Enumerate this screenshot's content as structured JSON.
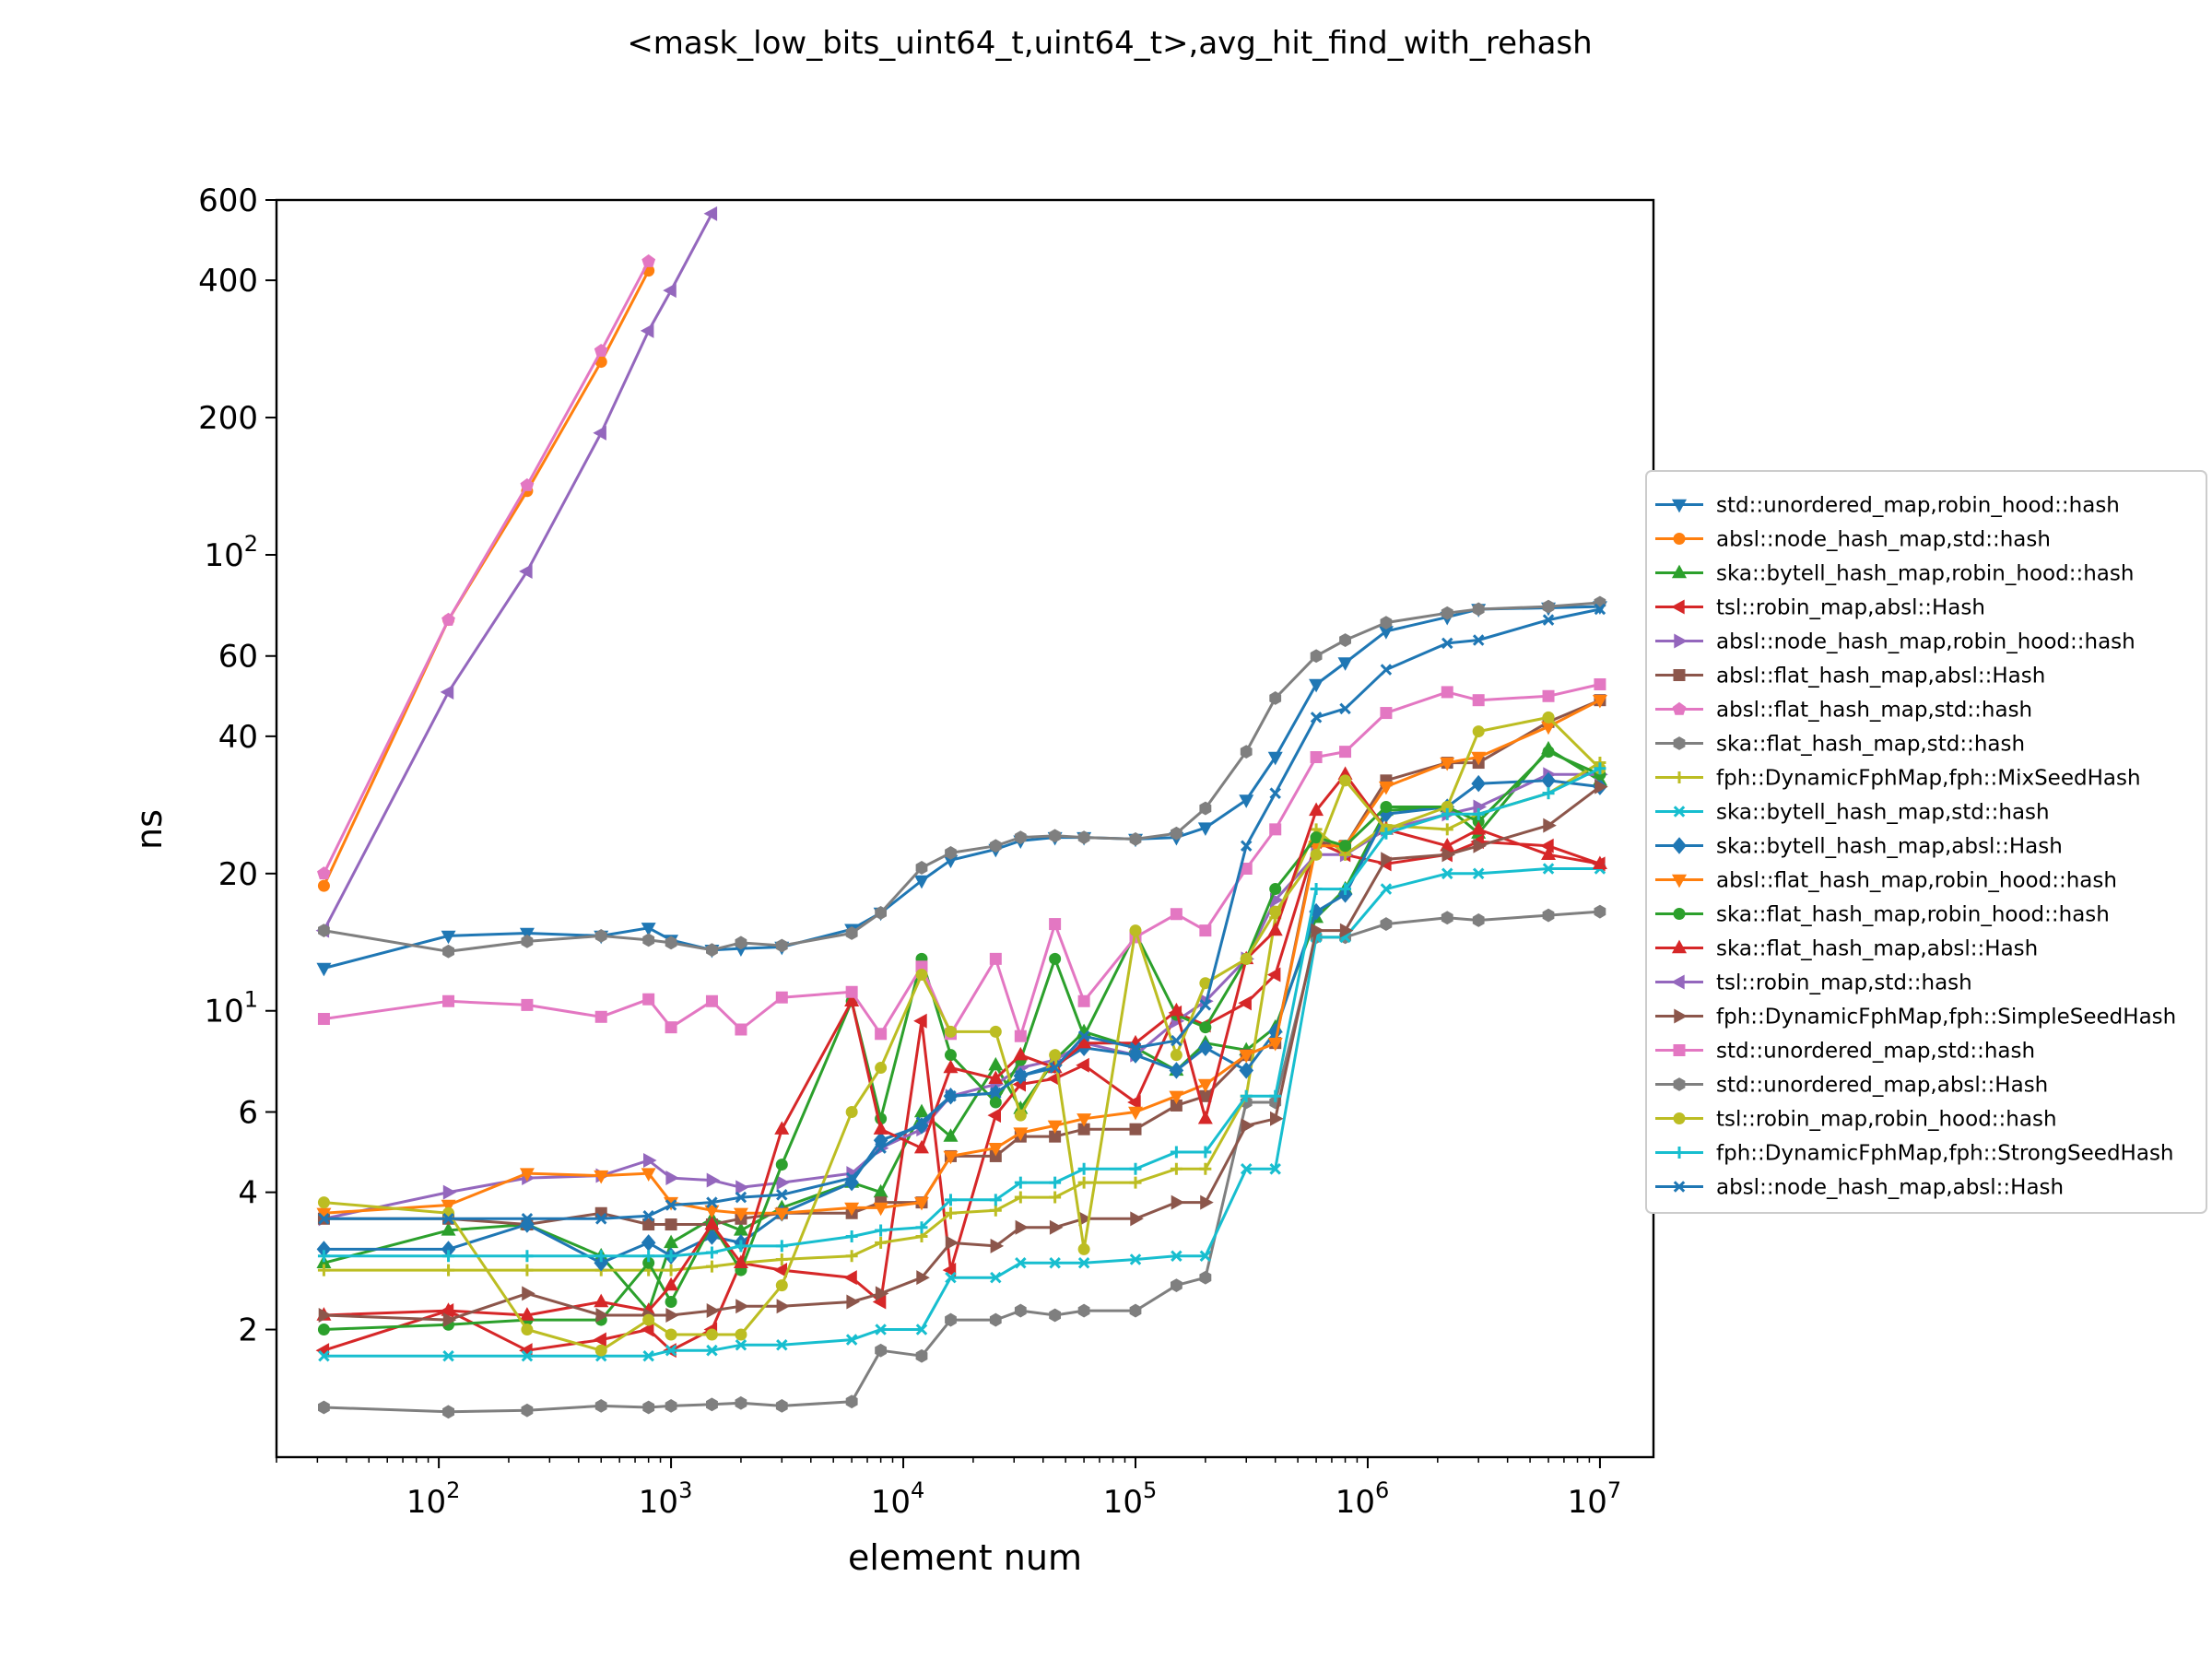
{
  "chart_data": {
    "type": "line",
    "title": "<mask_low_bits_uint64_t,uint64_t>,avg_hit_find_with_rehash",
    "xlabel": "element num",
    "ylabel": "ns",
    "xscale": "log",
    "yscale": "log",
    "xlim": [
      20,
      17000000
    ],
    "ylim": [
      1.05,
      600
    ],
    "grid": false,
    "legend_position": "right",
    "x_ticks": [
      {
        "value": 100,
        "base": "10",
        "exp": "2"
      },
      {
        "value": 1000,
        "base": "10",
        "exp": "3"
      },
      {
        "value": 10000,
        "base": "10",
        "exp": "4"
      },
      {
        "value": 100000,
        "base": "10",
        "exp": "5"
      },
      {
        "value": 1000000,
        "base": "10",
        "exp": "6"
      },
      {
        "value": 10000000,
        "base": "10",
        "exp": "7"
      }
    ],
    "y_ticks": [
      {
        "value": 2,
        "label": "2"
      },
      {
        "value": 4,
        "label": "4"
      },
      {
        "value": 6,
        "label": "6"
      },
      {
        "value": 10,
        "base": "10",
        "exp": "1"
      },
      {
        "value": 20,
        "label": "20"
      },
      {
        "value": 40,
        "label": "40"
      },
      {
        "value": 60,
        "label": "60"
      },
      {
        "value": 100,
        "base": "10",
        "exp": "2"
      },
      {
        "value": 200,
        "label": "200"
      },
      {
        "value": 400,
        "label": "400"
      },
      {
        "value": 600,
        "label": "600"
      }
    ],
    "x": [
      32,
      110,
      240,
      500,
      800,
      1000,
      1500,
      2000,
      3000,
      6000,
      8000,
      12000,
      16000,
      25000,
      32000,
      45000,
      60000,
      100000,
      150000,
      200000,
      300000,
      400000,
      600000,
      800000,
      1200000,
      2200000,
      3000000,
      6000000,
      10000000
    ],
    "series": [
      {
        "name": "std::unordered_map,robin_hood::hash",
        "color": "#1f77b4",
        "marker": "tri_down",
        "values": [
          12.4,
          14.6,
          14.8,
          14.6,
          15.2,
          14.3,
          13.6,
          13.7,
          13.8,
          15.1,
          16.4,
          19.3,
          21.4,
          22.6,
          23.6,
          24.0,
          24.0,
          23.8,
          24.0,
          25.2,
          29.0,
          36.0,
          52.0,
          58.0,
          68.0,
          73.0,
          76.0,
          76.5,
          77.0
        ]
      },
      {
        "name": "absl::node_hash_map,std::hash",
        "color": "#ff7f0e",
        "marker": "circle",
        "values": [
          18.8,
          72.0,
          138.0,
          265.0,
          420.0,
          null,
          null,
          null,
          null,
          null,
          null,
          null,
          null,
          null,
          null,
          null,
          null,
          null,
          null,
          null,
          null,
          null,
          null,
          null,
          null,
          null,
          null,
          null,
          null
        ]
      },
      {
        "name": "ska::bytell_hash_map,robin_hood::hash",
        "color": "#2ca02c",
        "marker": "tri_up",
        "values": [
          2.8,
          3.3,
          3.4,
          2.9,
          2.2,
          3.1,
          3.5,
          3.3,
          3.7,
          4.2,
          4.0,
          6.0,
          5.3,
          7.6,
          6.1,
          7.8,
          9.0,
          8.3,
          7.4,
          8.5,
          8.2,
          9.2,
          16.0,
          18.5,
          27.5,
          28.0,
          24.5,
          37.5,
          32.0
        ]
      },
      {
        "name": "tsl::robin_map,absl::Hash",
        "color": "#d62728",
        "marker": "tri_left",
        "values": [
          1.8,
          2.2,
          1.8,
          1.9,
          2.0,
          1.8,
          2.0,
          2.8,
          2.7,
          2.6,
          2.3,
          9.5,
          2.7,
          5.9,
          6.9,
          7.1,
          7.6,
          6.3,
          9.9,
          9.3,
          10.4,
          12.0,
          23.5,
          22.0,
          21.0,
          22.0,
          23.5,
          23.0,
          21.0
        ]
      },
      {
        "name": "absl::node_hash_map,robin_hood::hash",
        "color": "#9467bd",
        "marker": "tri_right",
        "values": [
          3.5,
          4.0,
          4.3,
          4.35,
          4.7,
          4.3,
          4.25,
          4.1,
          4.2,
          4.4,
          5.0,
          5.5,
          6.5,
          6.9,
          7.5,
          7.8,
          8.5,
          8.0,
          9.5,
          10.5,
          13.0,
          17.5,
          22.0,
          22.0,
          25.0,
          27.0,
          28.0,
          33.0,
          33.0
        ]
      },
      {
        "name": "absl::flat_hash_map,absl::Hash",
        "color": "#8c564b",
        "marker": "square",
        "values": [
          3.5,
          3.5,
          3.4,
          3.6,
          3.4,
          3.4,
          3.4,
          3.5,
          3.6,
          3.6,
          3.8,
          3.8,
          4.8,
          4.8,
          5.3,
          5.3,
          5.5,
          5.5,
          6.2,
          6.5,
          8.0,
          8.5,
          23.5,
          23.0,
          32.0,
          35.0,
          35.0,
          43.0,
          48.0
        ]
      },
      {
        "name": "absl::flat_hash_map,std::hash",
        "color": "#e377c2",
        "marker": "pentagon",
        "values": [
          20.0,
          72.0,
          142.0,
          280.0,
          440.0,
          null,
          null,
          null,
          null,
          null,
          null,
          null,
          null,
          null,
          null,
          null,
          null,
          null,
          null,
          null,
          null,
          null,
          null,
          null,
          null,
          null,
          null,
          null,
          null
        ]
      },
      {
        "name": "ska::flat_hash_map,std::hash",
        "color": "#7f7f7f",
        "marker": "hexagon",
        "values": [
          1.35,
          1.32,
          1.33,
          1.36,
          1.35,
          1.36,
          1.37,
          1.38,
          1.36,
          1.39,
          1.8,
          1.75,
          2.1,
          2.1,
          2.2,
          2.15,
          2.2,
          2.2,
          2.5,
          2.6,
          6.3,
          6.3,
          14.5,
          14.5,
          15.5,
          16.0,
          15.8,
          16.2,
          16.5
        ]
      },
      {
        "name": "fph::DynamicFphMap,fph::MixSeedHash",
        "color": "#bcbd22",
        "marker": "plus",
        "values": [
          2.7,
          2.7,
          2.7,
          2.7,
          2.7,
          2.7,
          2.75,
          2.8,
          2.85,
          2.9,
          3.1,
          3.2,
          3.6,
          3.65,
          3.9,
          3.9,
          4.2,
          4.2,
          4.5,
          4.5,
          6.5,
          16.0,
          25.0,
          22.0,
          25.5,
          25.0,
          27.0,
          30.0,
          35.0
        ]
      },
      {
        "name": "ska::bytell_hash_map,std::hash",
        "color": "#17becf",
        "marker": "x",
        "values": [
          1.75,
          1.75,
          1.75,
          1.75,
          1.75,
          1.8,
          1.8,
          1.85,
          1.85,
          1.9,
          2.0,
          2.0,
          2.6,
          2.6,
          2.8,
          2.8,
          2.8,
          2.85,
          2.9,
          2.9,
          4.5,
          4.5,
          14.5,
          14.5,
          18.5,
          20.0,
          20.0,
          20.5,
          20.5
        ]
      },
      {
        "name": "ska::bytell_hash_map,absl::Hash",
        "color": "#1f77b4",
        "marker": "diamond",
        "values": [
          3.0,
          3.0,
          3.4,
          2.8,
          3.1,
          2.9,
          3.2,
          3.1,
          3.6,
          4.2,
          5.2,
          5.6,
          6.5,
          6.6,
          7.2,
          7.6,
          8.3,
          8.0,
          7.4,
          8.3,
          7.4,
          9.0,
          16.5,
          18.0,
          27.0,
          28.0,
          31.5,
          32.0,
          31.0
        ]
      },
      {
        "name": "absl::flat_hash_map,robin_hood::hash",
        "color": "#ff7f0e",
        "marker": "tri_down",
        "values": [
          3.6,
          3.75,
          4.4,
          4.35,
          4.4,
          3.8,
          3.65,
          3.6,
          3.6,
          3.7,
          3.7,
          3.8,
          4.8,
          5.0,
          5.4,
          5.6,
          5.8,
          6.0,
          6.5,
          6.9,
          8.0,
          8.5,
          23.0,
          23.0,
          31.0,
          35.0,
          36.0,
          42.0,
          48.0
        ]
      },
      {
        "name": "ska::flat_hash_map,robin_hood::hash",
        "color": "#2ca02c",
        "marker": "circle",
        "values": [
          2.0,
          2.05,
          2.1,
          2.1,
          2.8,
          2.3,
          3.4,
          2.7,
          4.6,
          10.5,
          5.8,
          13.0,
          8.0,
          6.3,
          7.8,
          13.0,
          8.8,
          14.8,
          9.8,
          9.2,
          13.0,
          18.5,
          24.0,
          23.0,
          28.0,
          28.0,
          26.0,
          37.0,
          33.0
        ]
      },
      {
        "name": "ska::flat_hash_map,absl::Hash",
        "color": "#d62728",
        "marker": "tri_up",
        "values": [
          2.15,
          2.2,
          2.15,
          2.3,
          2.2,
          2.5,
          3.4,
          2.8,
          5.5,
          10.5,
          5.5,
          5.0,
          7.5,
          7.1,
          8.0,
          7.5,
          8.5,
          8.5,
          10.0,
          5.8,
          13.0,
          15.0,
          27.5,
          33.0,
          25.0,
          23.0,
          25.0,
          22.0,
          21.0
        ]
      },
      {
        "name": "tsl::robin_map,std::hash",
        "color": "#9467bd",
        "marker": "tri_left",
        "values": [
          15.0,
          50.0,
          92.0,
          185.0,
          310.0,
          380.0,
          560.0,
          null,
          null,
          null,
          null,
          null,
          null,
          null,
          null,
          null,
          null,
          null,
          null,
          null,
          null,
          null,
          null,
          null,
          null,
          null,
          null,
          null,
          null
        ]
      },
      {
        "name": "fph::DynamicFphMap,fph::SimpleSeedHash",
        "color": "#8c564b",
        "marker": "tri_right",
        "values": [
          2.15,
          2.1,
          2.4,
          2.15,
          2.15,
          2.15,
          2.2,
          2.25,
          2.25,
          2.3,
          2.4,
          2.6,
          3.1,
          3.05,
          3.35,
          3.35,
          3.5,
          3.5,
          3.8,
          3.8,
          5.6,
          5.8,
          15.0,
          15.0,
          21.5,
          22.0,
          23.0,
          25.5,
          31.0
        ]
      },
      {
        "name": "std::unordered_map,std::hash",
        "color": "#e377c2",
        "marker": "square",
        "values": [
          9.6,
          10.5,
          10.3,
          9.7,
          10.6,
          9.2,
          10.5,
          9.1,
          10.7,
          11.0,
          8.9,
          12.5,
          8.9,
          13.0,
          8.8,
          15.5,
          10.5,
          14.5,
          16.3,
          15.0,
          20.5,
          25.0,
          36.0,
          37.0,
          45.0,
          50.0,
          48.0,
          49.0,
          52.0
        ]
      },
      {
        "name": "std::unordered_map,absl::Hash",
        "color": "#7f7f7f",
        "marker": "hexagon",
        "values": [
          15.0,
          13.5,
          14.2,
          14.6,
          14.3,
          14.1,
          13.6,
          14.1,
          13.9,
          14.8,
          16.4,
          20.6,
          22.2,
          23.0,
          24.0,
          24.2,
          24.0,
          23.8,
          24.5,
          27.8,
          37.0,
          48.5,
          60.0,
          65.0,
          71.0,
          74.5,
          76.0,
          77.0,
          78.5
        ]
      },
      {
        "name": "tsl::robin_map,robin_hood::hash",
        "color": "#bcbd22",
        "marker": "circle",
        "values": [
          3.8,
          3.6,
          2.0,
          1.8,
          2.1,
          1.95,
          1.95,
          1.95,
          2.5,
          6.0,
          7.5,
          12.0,
          9.0,
          9.0,
          5.9,
          8.0,
          3.0,
          15.0,
          8.0,
          11.5,
          13.0,
          16.5,
          22.0,
          32.0,
          25.0,
          28.0,
          41.0,
          44.0,
          34.0
        ]
      },
      {
        "name": "fph::DynamicFphMap,fph::StrongSeedHash",
        "color": "#17becf",
        "marker": "plus",
        "values": [
          2.9,
          2.9,
          2.9,
          2.9,
          2.9,
          2.9,
          2.95,
          3.05,
          3.05,
          3.2,
          3.3,
          3.35,
          3.85,
          3.85,
          4.2,
          4.2,
          4.5,
          4.5,
          4.9,
          4.9,
          6.5,
          6.5,
          18.5,
          18.5,
          24.5,
          27.0,
          27.0,
          30.0,
          34.0
        ]
      },
      {
        "name": "absl::node_hash_map,absl::Hash",
        "color": "#1f77b4",
        "marker": "x",
        "values": [
          3.5,
          3.5,
          3.5,
          3.5,
          3.55,
          3.75,
          3.8,
          3.9,
          3.95,
          4.3,
          5.0,
          5.7,
          6.5,
          6.6,
          7.2,
          7.5,
          8.8,
          8.3,
          8.6,
          10.3,
          23.0,
          30.0,
          44.0,
          46.0,
          56.0,
          64.0,
          65.0,
          72.0,
          76.0
        ]
      }
    ]
  }
}
